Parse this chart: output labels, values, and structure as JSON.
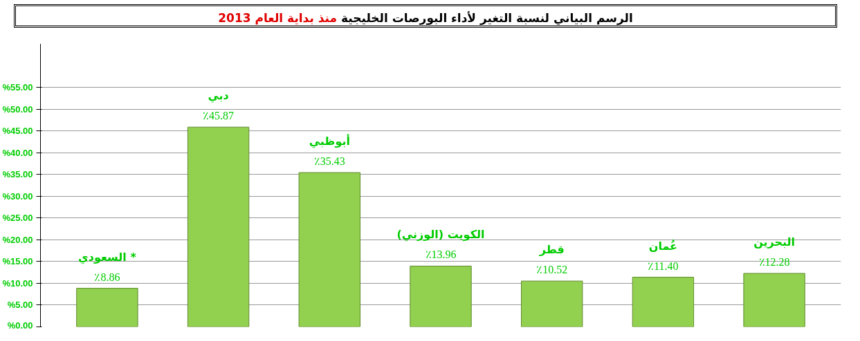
{
  "chart_data": {
    "type": "bar",
    "title": "الرسم البياني لنسبة التغير لأداء البورصات الخليجية",
    "subtitle": "منذ بداية العام 2013",
    "categories": [
      "السعودي *",
      "دبي",
      "أبوظبي",
      "الكويت (الوزني)",
      "قطر",
      "عُمان",
      "البحرين"
    ],
    "values": [
      8.86,
      45.87,
      35.43,
      13.96,
      10.52,
      11.4,
      12.28
    ],
    "value_labels": [
      "٪8.86",
      "٪45.87",
      "٪35.43",
      "٪13.96",
      "٪10.52",
      "٪11.40",
      "٪12.28"
    ],
    "color": "#92d050",
    "ylim": [
      0,
      65
    ],
    "yticks": [
      {
        "value": 0,
        "label": "%0.00"
      },
      {
        "value": 5,
        "label": "%5.00"
      },
      {
        "value": 10,
        "label": "%10.00"
      },
      {
        "value": 15,
        "label": "%15.00"
      },
      {
        "value": 20,
        "label": "%20.00"
      },
      {
        "value": 25,
        "label": "%25.00"
      },
      {
        "value": 30,
        "label": "%30.00"
      },
      {
        "value": 35,
        "label": "%35.00"
      },
      {
        "value": 40,
        "label": "%40.00"
      },
      {
        "value": 45,
        "label": "%45.00"
      },
      {
        "value": 50,
        "label": "%50.00"
      },
      {
        "value": 55,
        "label": "%55.00"
      }
    ],
    "grid": "y"
  }
}
